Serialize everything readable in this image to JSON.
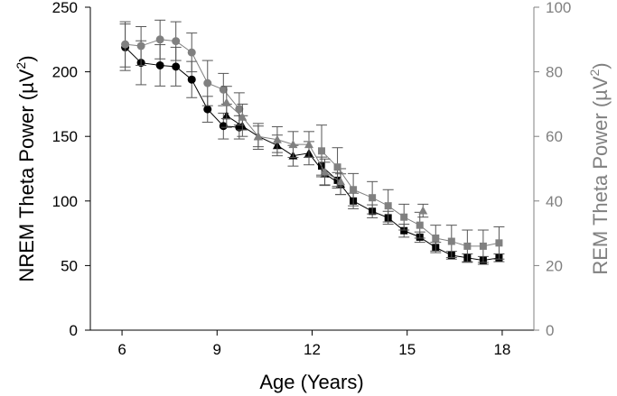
{
  "chart_data": {
    "type": "scatter",
    "title": "",
    "xlabel": "Age (Years)",
    "ylabel_left": {
      "text": "NREM Theta Power (µV",
      "sup": "2",
      "close": ")"
    },
    "ylabel_right": {
      "text": "REM Theta Power (µV",
      "sup": "2",
      "close": ")"
    },
    "xlim": [
      5,
      19
    ],
    "ylim_left": [
      0,
      250
    ],
    "ylim_right": [
      0,
      100
    ],
    "xticks": [
      6,
      9,
      12,
      15,
      18
    ],
    "yticks_left": [
      0,
      50,
      100,
      150,
      200,
      250
    ],
    "yticks_right": [
      0,
      20,
      40,
      60,
      80,
      100
    ],
    "grid": false,
    "legend": "none",
    "colors": {
      "nrem": "#000000",
      "rem": "#808080",
      "axis_right": "#808080",
      "errorbar": "#555555"
    },
    "series": [
      {
        "axis": "left",
        "color": "#000000",
        "points": [
          {
            "x": 6.1,
            "y": 219,
            "err": 18,
            "marker": "circle"
          },
          {
            "x": 6.6,
            "y": 207,
            "err": 17,
            "marker": "circle"
          },
          {
            "x": 7.2,
            "y": 205,
            "err": 16,
            "marker": "circle"
          },
          {
            "x": 7.7,
            "y": 204,
            "err": 15,
            "marker": "circle"
          },
          {
            "x": 8.2,
            "y": 194,
            "err": 14,
            "marker": "circle"
          },
          {
            "x": 8.7,
            "y": 171,
            "err": 10,
            "marker": "circle"
          },
          {
            "x": 9.2,
            "y": 158,
            "err": 10,
            "marker": "circle"
          },
          {
            "x": 9.7,
            "y": 157,
            "err": 9,
            "marker": "circle"
          },
          {
            "x": 9.3,
            "y": 166,
            "err": 9,
            "marker": "triangle"
          },
          {
            "x": 9.8,
            "y": 158,
            "err": 8,
            "marker": "triangle"
          },
          {
            "x": 10.3,
            "y": 150,
            "err": 8,
            "marker": "triangle"
          },
          {
            "x": 10.9,
            "y": 143,
            "err": 8,
            "marker": "triangle"
          },
          {
            "x": 11.4,
            "y": 135,
            "err": 8,
            "marker": "triangle"
          },
          {
            "x": 11.9,
            "y": 137,
            "err": 9,
            "marker": "triangle"
          },
          {
            "x": 12.4,
            "y": 121,
            "err": 9,
            "marker": "triangle"
          },
          {
            "x": 12.9,
            "y": 113,
            "err": 8,
            "marker": "triangle"
          },
          {
            "x": 12.3,
            "y": 127,
            "err": 7,
            "marker": "square"
          },
          {
            "x": 12.8,
            "y": 116,
            "err": 6,
            "marker": "square"
          },
          {
            "x": 13.3,
            "y": 100,
            "err": 6,
            "marker": "square"
          },
          {
            "x": 13.9,
            "y": 92,
            "err": 5,
            "marker": "square"
          },
          {
            "x": 14.4,
            "y": 87,
            "err": 5,
            "marker": "square"
          },
          {
            "x": 14.9,
            "y": 77,
            "err": 5,
            "marker": "square"
          },
          {
            "x": 15.4,
            "y": 72,
            "err": 4,
            "marker": "square"
          },
          {
            "x": 15.9,
            "y": 64,
            "err": 4,
            "marker": "square"
          },
          {
            "x": 16.4,
            "y": 58,
            "err": 3,
            "marker": "square"
          },
          {
            "x": 16.9,
            "y": 56,
            "err": 3,
            "marker": "square"
          },
          {
            "x": 17.4,
            "y": 54,
            "err": 3,
            "marker": "square"
          },
          {
            "x": 17.9,
            "y": 56,
            "err": 3,
            "marker": "square"
          }
        ]
      },
      {
        "axis": "right",
        "color": "#808080",
        "points": [
          {
            "x": 6.1,
            "y": 88.5,
            "err": 7,
            "marker": "circle"
          },
          {
            "x": 6.6,
            "y": 88.0,
            "err": 6,
            "marker": "circle"
          },
          {
            "x": 7.2,
            "y": 90.0,
            "err": 6,
            "marker": "circle"
          },
          {
            "x": 7.7,
            "y": 89.5,
            "err": 6,
            "marker": "circle"
          },
          {
            "x": 8.2,
            "y": 86.0,
            "err": 6,
            "marker": "circle"
          },
          {
            "x": 8.7,
            "y": 76.5,
            "err": 7,
            "marker": "circle"
          },
          {
            "x": 9.2,
            "y": 74.5,
            "err": 5,
            "marker": "circle"
          },
          {
            "x": 9.7,
            "y": 68.5,
            "err": 5,
            "marker": "circle"
          },
          {
            "x": 9.3,
            "y": 70.5,
            "err": 5,
            "marker": "triangle"
          },
          {
            "x": 9.8,
            "y": 66.0,
            "err": 4,
            "marker": "triangle"
          },
          {
            "x": 10.3,
            "y": 60.0,
            "err": 4,
            "marker": "triangle"
          },
          {
            "x": 10.9,
            "y": 59.0,
            "err": 4,
            "marker": "triangle"
          },
          {
            "x": 11.4,
            "y": 57.5,
            "err": 4,
            "marker": "triangle"
          },
          {
            "x": 11.9,
            "y": 57.5,
            "err": 4,
            "marker": "triangle"
          },
          {
            "x": 12.4,
            "y": 49.0,
            "err": 4,
            "marker": "triangle"
          },
          {
            "x": 12.9,
            "y": 46.0,
            "err": 4,
            "marker": "triangle"
          },
          {
            "x": 12.3,
            "y": 55.5,
            "err": 8,
            "marker": "square"
          },
          {
            "x": 12.8,
            "y": 50.5,
            "err": 6,
            "marker": "square"
          },
          {
            "x": 13.3,
            "y": 43.5,
            "err": 5,
            "marker": "square"
          },
          {
            "x": 13.9,
            "y": 41.0,
            "err": 5,
            "marker": "square"
          },
          {
            "x": 14.4,
            "y": 38.5,
            "err": 5,
            "marker": "square"
          },
          {
            "x": 14.9,
            "y": 35.0,
            "err": 4,
            "marker": "square"
          },
          {
            "x": 15.4,
            "y": 32.5,
            "err": 4,
            "marker": "square"
          },
          {
            "x": 15.9,
            "y": 28.5,
            "err": 4,
            "marker": "square"
          },
          {
            "x": 16.4,
            "y": 27.5,
            "err": 5,
            "marker": "square"
          },
          {
            "x": 16.9,
            "y": 26.0,
            "err": 5,
            "marker": "square"
          },
          {
            "x": 17.4,
            "y": 26.0,
            "err": 5,
            "marker": "square"
          },
          {
            "x": 17.9,
            "y": 27.0,
            "err": 5,
            "marker": "square"
          }
        ]
      },
      {
        "axis": "right",
        "color": "#808080",
        "connect": false,
        "points": [
          {
            "x": 15.5,
            "y": 37.0,
            "err": 2,
            "marker": "triangle"
          }
        ]
      }
    ]
  }
}
